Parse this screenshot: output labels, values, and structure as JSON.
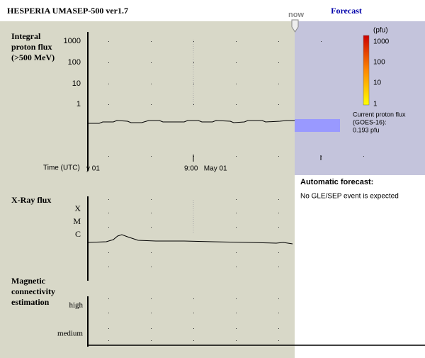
{
  "header": {
    "title": "HESPERIA UMASEP-500 ver1.7",
    "now": "now",
    "forecast": "Forecast"
  },
  "proton_panel": {
    "title_lines": [
      "Integral",
      "proton flux",
      "(>500 MeV)"
    ],
    "tick_labels": [
      "1000",
      "100",
      "10",
      "1"
    ],
    "time_label": "Time (UTC)",
    "x_labels": [
      "y 01",
      "9:00   May 01"
    ]
  },
  "xray_panel": {
    "title": "X-Ray flux",
    "tick_labels": [
      "X",
      "M",
      "C"
    ]
  },
  "magnetic_panel": {
    "title_lines": [
      "Magnetic",
      "connectivity",
      "estimation"
    ],
    "tick_labels": [
      "high",
      "medium"
    ]
  },
  "legend": {
    "unit": "(pfu)",
    "tick_labels": [
      "1000",
      "100",
      "10",
      "1"
    ]
  },
  "current_flux": {
    "lines": [
      "Current proton flux",
      "(GOES-16):",
      "0.193 pfu"
    ]
  },
  "forecast": {
    "heading": "Automatic forecast:",
    "message": "No GLE/SEP event is expected"
  }
}
